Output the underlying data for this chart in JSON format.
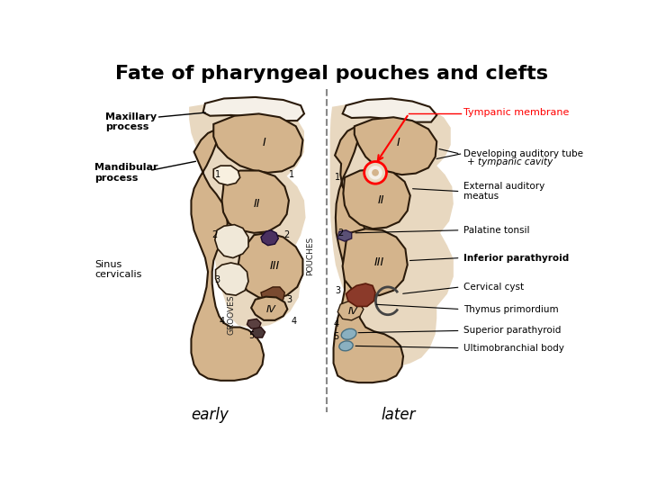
{
  "title": "Fate of pharyngeal pouches and clefts",
  "title_fontsize": 16,
  "title_fontweight": "bold",
  "background_color": "#ffffff",
  "fig_width": 7.2,
  "fig_height": 5.4,
  "dpi": 100,
  "left_label": "early",
  "right_label": "later",
  "label_fontsize": 12,
  "skin_color": "#d4b48c",
  "skin_edge_color": "#2a1a0a",
  "beige_bg": "#e8d8c0",
  "dark_purple": "#4a3060",
  "dark_brown": "#7a4a30",
  "thymus_color": "#8b3a2a",
  "blue_color": "#8ab0c0"
}
